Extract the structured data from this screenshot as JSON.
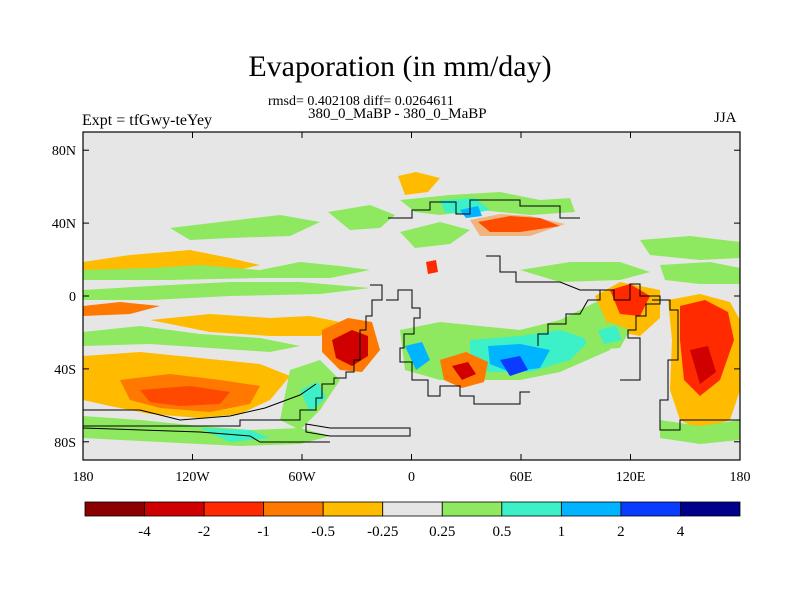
{
  "title": "Evaporation (in mm/day)",
  "subtitle": "rmsd= 0.402108 diff= 0.0264611",
  "left_label": "Expt = tfGwy-teYey",
  "center_label": "380_0_MaBP - 380_0_MaBP",
  "right_label": "JJA",
  "chart_data": {
    "type": "heatmap",
    "title": "Evaporation (in mm/day)",
    "x_ticks": [
      "180",
      "120W",
      "60W",
      "0",
      "60E",
      "120E",
      "180"
    ],
    "y_ticks": [
      "80N",
      "40N",
      "0",
      "40S",
      "80S"
    ],
    "xlim": [
      -180,
      180
    ],
    "ylim": [
      -90,
      90
    ],
    "colorbar": {
      "tick_labels": [
        "-4",
        "-2",
        "-1",
        "-0.5",
        "-0.25",
        "0.25",
        "0.5",
        "1",
        "2",
        "4"
      ],
      "colors": [
        "#8b0000",
        "#d00000",
        "#ff2a00",
        "#ff7800",
        "#ffbb00",
        "#e6e6e6",
        "#8ee860",
        "#3cf0c8",
        "#00b4ff",
        "#0a3cff",
        "#00008c"
      ]
    }
  }
}
